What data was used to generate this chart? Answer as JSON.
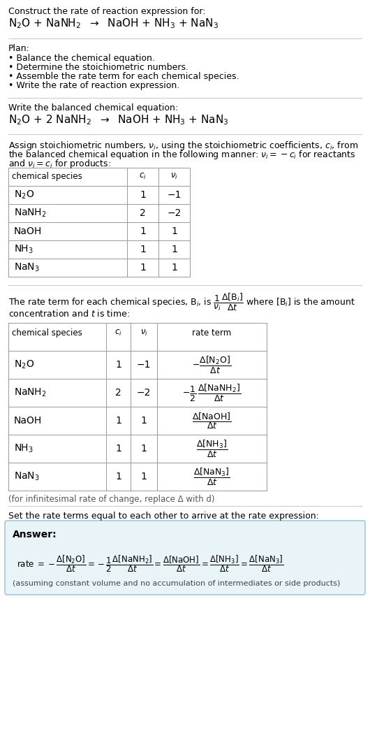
{
  "bg_color": "#ffffff",
  "title_line1": "Construct the rate of reaction expression for:",
  "plan_header": "Plan:",
  "plan_items": [
    "• Balance the chemical equation.",
    "• Determine the stoichiometric numbers.",
    "• Assemble the rate term for each chemical species.",
    "• Write the rate of reaction expression."
  ],
  "balanced_header": "Write the balanced chemical equation:",
  "table1_headers": [
    "chemical species",
    "c_i",
    "ν_i"
  ],
  "table1_rows": [
    [
      "N_2O",
      "1",
      "−1"
    ],
    [
      "NaNH_2",
      "2",
      "−2"
    ],
    [
      "NaOH",
      "1",
      "1"
    ],
    [
      "NH_3",
      "1",
      "1"
    ],
    [
      "NaN_3",
      "1",
      "1"
    ]
  ],
  "table2_headers": [
    "chemical species",
    "c_i",
    "ν_i",
    "rate term"
  ],
  "table2_rows": [
    [
      "N_2O",
      "1",
      "−1"
    ],
    [
      "NaNH_2",
      "2",
      "−2"
    ],
    [
      "NaOH",
      "1",
      "1"
    ],
    [
      "NH_3",
      "1",
      "1"
    ],
    [
      "NaN_3",
      "1",
      "1"
    ]
  ],
  "infinitesimal_note": "(for infinitesimal rate of change, replace Δ with d)",
  "set_equal_text": "Set the rate terms equal to each other to arrive at the rate expression:",
  "answer_box_color": "#e8f4f8",
  "answer_border_color": "#a8c8d8",
  "answer_label": "Answer:",
  "answer_note": "(assuming constant volume and no accumulation of intermediates or side products)",
  "line_color": "#cccccc",
  "table_line_color": "#999999",
  "fig_width": 5.3,
  "fig_height": 10.46,
  "dpi": 100
}
